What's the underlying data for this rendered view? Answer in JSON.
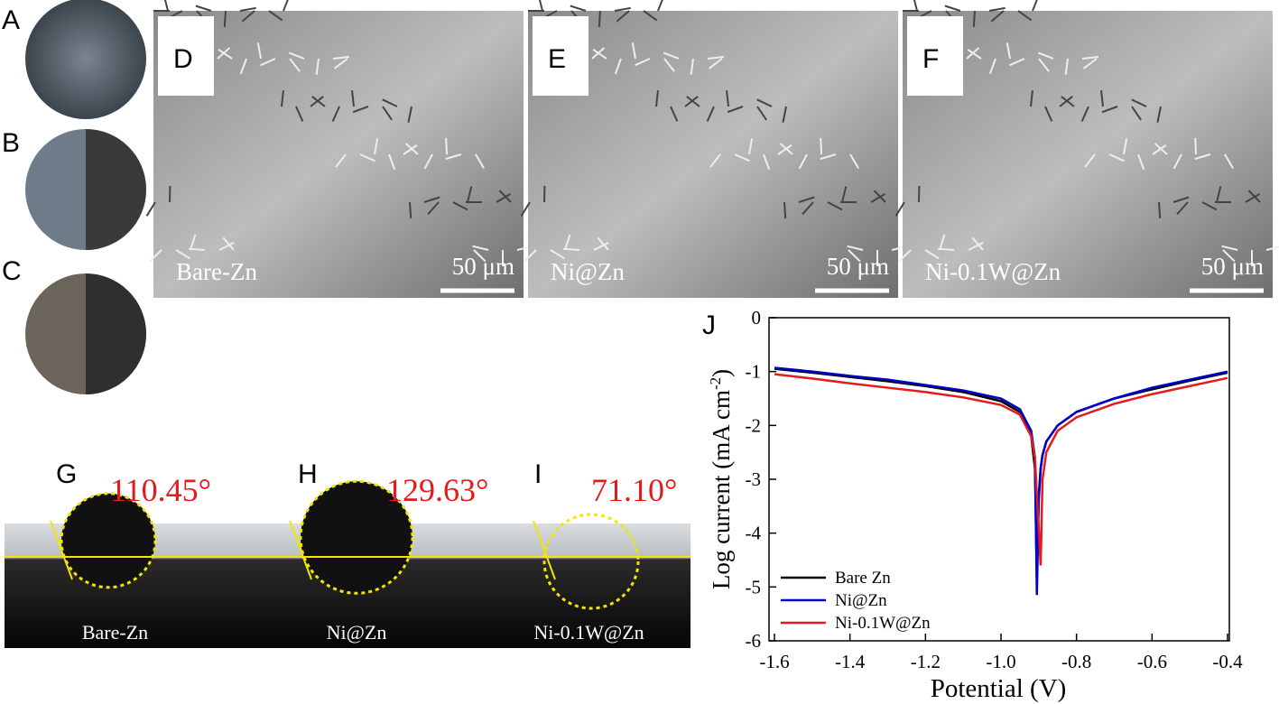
{
  "panels": {
    "photos": {
      "labels": [
        "A",
        "B",
        "C"
      ]
    },
    "sem": [
      {
        "label": "D",
        "sample": "Bare-Zn",
        "scale": "50 μm"
      },
      {
        "label": "E",
        "sample": "Ni@Zn",
        "scale": "50 μm"
      },
      {
        "label": "F",
        "sample": "Ni-0.1W@Zn",
        "scale": "50 μm"
      }
    ],
    "contact": [
      {
        "label": "G",
        "angle": "110.45°",
        "sample": "Bare-Zn"
      },
      {
        "label": "H",
        "angle": "129.63°",
        "sample": "Ni@Zn"
      },
      {
        "label": "I",
        "angle": "71.10°",
        "sample": "Ni-0.1W@Zn"
      }
    ]
  },
  "chart_data": {
    "type": "line",
    "panel_label": "J",
    "x_label": "Potential (V)",
    "y_label": "Log current (mA cm",
    "y_label_sup": "-2",
    "y_label_end": ")",
    "xlim": [
      -1.6,
      -0.4
    ],
    "ylim": [
      -6,
      0
    ],
    "xticks": [
      -1.6,
      -1.4,
      -1.2,
      {
        "value": -1,
        "label": "-1.0"
      },
      -0.8,
      -0.6,
      -0.4
    ],
    "yticks": [
      0,
      -1,
      -2,
      -3,
      -4,
      -5,
      -6
    ],
    "legend": "lower left",
    "x": [
      -1.6,
      -1.5,
      -1.4,
      -1.3,
      -1.2,
      -1.1,
      -1.0,
      -0.95,
      -0.92,
      -0.91,
      -0.905,
      -0.9,
      -0.895,
      -0.89,
      -0.88,
      -0.85,
      -0.8,
      -0.7,
      -0.6,
      -0.5,
      -0.4
    ],
    "series": [
      {
        "name": "Bare Zn",
        "color": "#000000",
        "values": [
          -0.95,
          -1.02,
          -1.1,
          -1.18,
          -1.27,
          -1.38,
          -1.55,
          -1.75,
          -2.2,
          -2.8,
          -4.8,
          -3.3,
          -2.8,
          -2.55,
          -2.3,
          -2.0,
          -1.75,
          -1.5,
          -1.33,
          -1.17,
          -1.02
        ]
      },
      {
        "name": "Ni@Zn",
        "color": "#0000cc",
        "values": [
          -0.93,
          -1.0,
          -1.08,
          -1.15,
          -1.25,
          -1.35,
          -1.5,
          -1.7,
          -2.1,
          -2.6,
          -5.15,
          -3.4,
          -2.8,
          -2.55,
          -2.3,
          -2.0,
          -1.75,
          -1.5,
          -1.3,
          -1.15,
          -1.0
        ]
      },
      {
        "name": "Ni-0.1W@Zn",
        "color": "#e41a1c",
        "values": [
          -1.05,
          -1.13,
          -1.22,
          -1.3,
          -1.38,
          -1.48,
          -1.62,
          -1.8,
          -2.2,
          -2.6,
          -3.3,
          -3.9,
          -4.6,
          -3.0,
          -2.5,
          -2.1,
          -1.85,
          -1.6,
          -1.42,
          -1.27,
          -1.12
        ]
      }
    ]
  }
}
